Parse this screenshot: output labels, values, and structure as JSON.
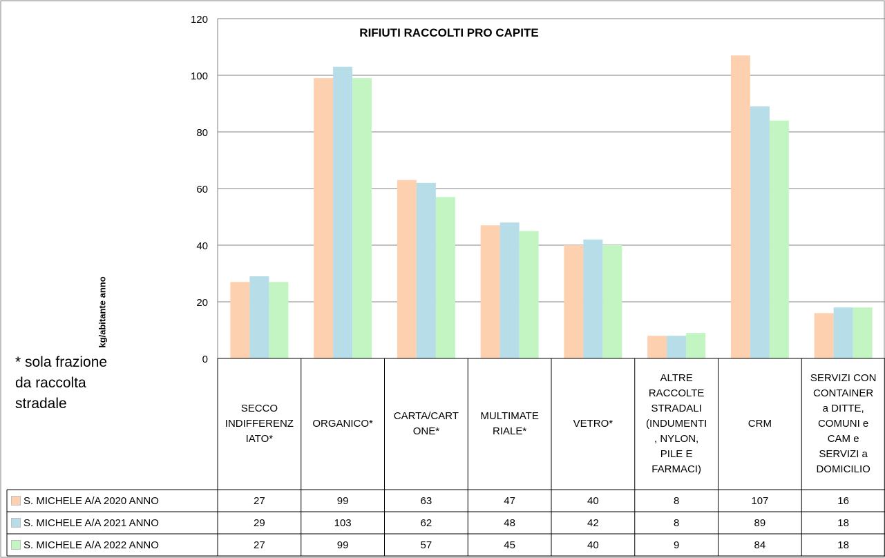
{
  "chart_data": {
    "type": "bar",
    "title": "RIFIUTI RACCOLTI PRO CAPITE",
    "ylabel": "kg/abitante anno",
    "ylim": [
      0,
      120
    ],
    "yticks": [
      0,
      20,
      40,
      60,
      80,
      100,
      120
    ],
    "categories": [
      "SECCO INDIFFERENZIATO*",
      "ORGANICO*",
      "CARTA/CARTONE*",
      "MULTIMATERIALE*",
      "VETRO*",
      "ALTRE RACCOLTE STRADALI (INDUMENTI, NYLON, PILE E FARMACI)",
      "CRM",
      "SERVIZI CON CONTAINER a DITTE, COMUNI e CAM e SERVIZI a DOMICILIO"
    ],
    "category_lines": [
      [
        "SECCO",
        "INDIFFERENZ",
        "IATO*"
      ],
      [
        "ORGANICO*"
      ],
      [
        "CARTA/CART",
        "ONE*"
      ],
      [
        "MULTIMATE",
        "RIALE*"
      ],
      [
        "VETRO*"
      ],
      [
        "ALTRE",
        "RACCOLTE",
        "STRADALI",
        "(INDUMENTI",
        ", NYLON,",
        "PILE E",
        "FARMACI)"
      ],
      [
        "CRM"
      ],
      [
        "SERVIZI CON",
        "CONTAINER",
        "a DITTE,",
        "COMUNI e",
        "CAM e",
        "SERVIZI a",
        "DOMICILIO"
      ]
    ],
    "series": [
      {
        "name": "S. MICHELE A/A 2020 ANNO",
        "color": "#fdd0b0",
        "values": [
          27,
          99,
          63,
          47,
          40,
          8,
          107,
          16
        ]
      },
      {
        "name": "S. MICHELE A/A 2021 ANNO",
        "color": "#b7dde8",
        "values": [
          29,
          103,
          62,
          48,
          42,
          8,
          89,
          18
        ]
      },
      {
        "name": "S. MICHELE A/A 2022 ANNO",
        "color": "#c3f5c3",
        "values": [
          27,
          99,
          57,
          45,
          40,
          9,
          84,
          18
        ]
      }
    ],
    "grid": true,
    "legend": "data-table"
  },
  "note": "* sola frazione da raccolta stradale"
}
